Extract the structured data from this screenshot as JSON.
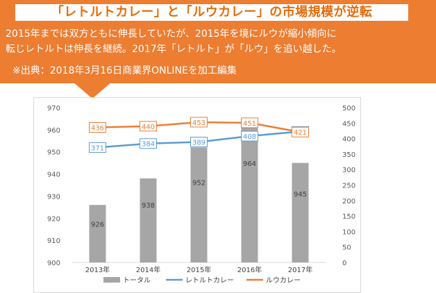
{
  "banner": {
    "title": "「レトルトカレー」と「ルウカレー」の市場規模が逆転",
    "summary_line1": "2015年までは双方ともに伸長していたが、2015年を境にルウが縮小傾向に",
    "summary_line2": "転じレトルトは伸長を継続。2017年「レトルト」が「ルウ」を追い越した。",
    "source": "※出典：2018年3月16日商業界ONLINEを加工編集",
    "color": "#ed7d31",
    "title_color": "#e46c0a"
  },
  "chart_data": {
    "type": "bar+line",
    "categories": [
      "2013年",
      "2014年",
      "2015年",
      "2016年",
      "2017年"
    ],
    "series": [
      {
        "name": "トータル",
        "kind": "bar",
        "axis": "left",
        "color": "#a6a6a6",
        "values": [
          926,
          938,
          952,
          964,
          945
        ]
      },
      {
        "name": "レトルトカレー",
        "kind": "line",
        "axis": "right",
        "color": "#5b9bd5",
        "values": [
          371,
          384,
          389,
          408,
          423
        ]
      },
      {
        "name": "ルウカレー",
        "kind": "line",
        "axis": "right",
        "color": "#ed7d31",
        "values": [
          436,
          440,
          453,
          451,
          421
        ]
      }
    ],
    "left_axis": {
      "min": 900,
      "max": 970,
      "step": 10,
      "ticks": [
        "970",
        "960",
        "950",
        "940",
        "930",
        "920",
        "910",
        "900"
      ]
    },
    "right_axis": {
      "min": 0,
      "max": 500,
      "step": 50,
      "ticks": [
        "500",
        "450",
        "400",
        "350",
        "300",
        "250",
        "200",
        "150",
        "100",
        "50",
        "0"
      ]
    },
    "legend_position": "bottom"
  }
}
